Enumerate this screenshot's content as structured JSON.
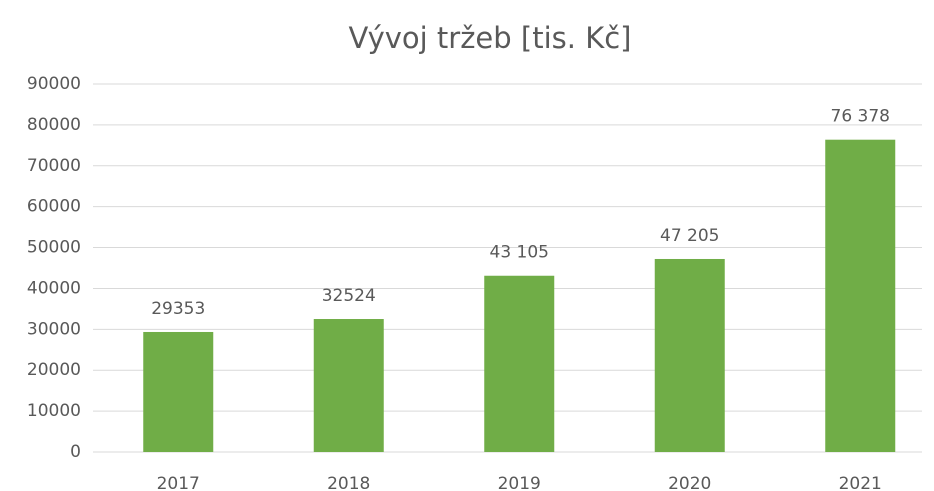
{
  "chart_data": {
    "type": "bar",
    "title": "Vývoj tržeb [tis. Kč]",
    "categories": [
      "2017",
      "2018",
      "2019",
      "2020",
      "2021"
    ],
    "values": [
      29353,
      32524,
      43105,
      47205,
      76378
    ],
    "value_labels": [
      "29353",
      "32524",
      "43 105",
      "47 205",
      "76 378"
    ],
    "color": "#70ad47",
    "ylim": [
      0,
      90000
    ],
    "yticks": [
      0,
      10000,
      20000,
      30000,
      40000,
      50000,
      60000,
      70000,
      80000,
      90000
    ],
    "grid": true
  }
}
